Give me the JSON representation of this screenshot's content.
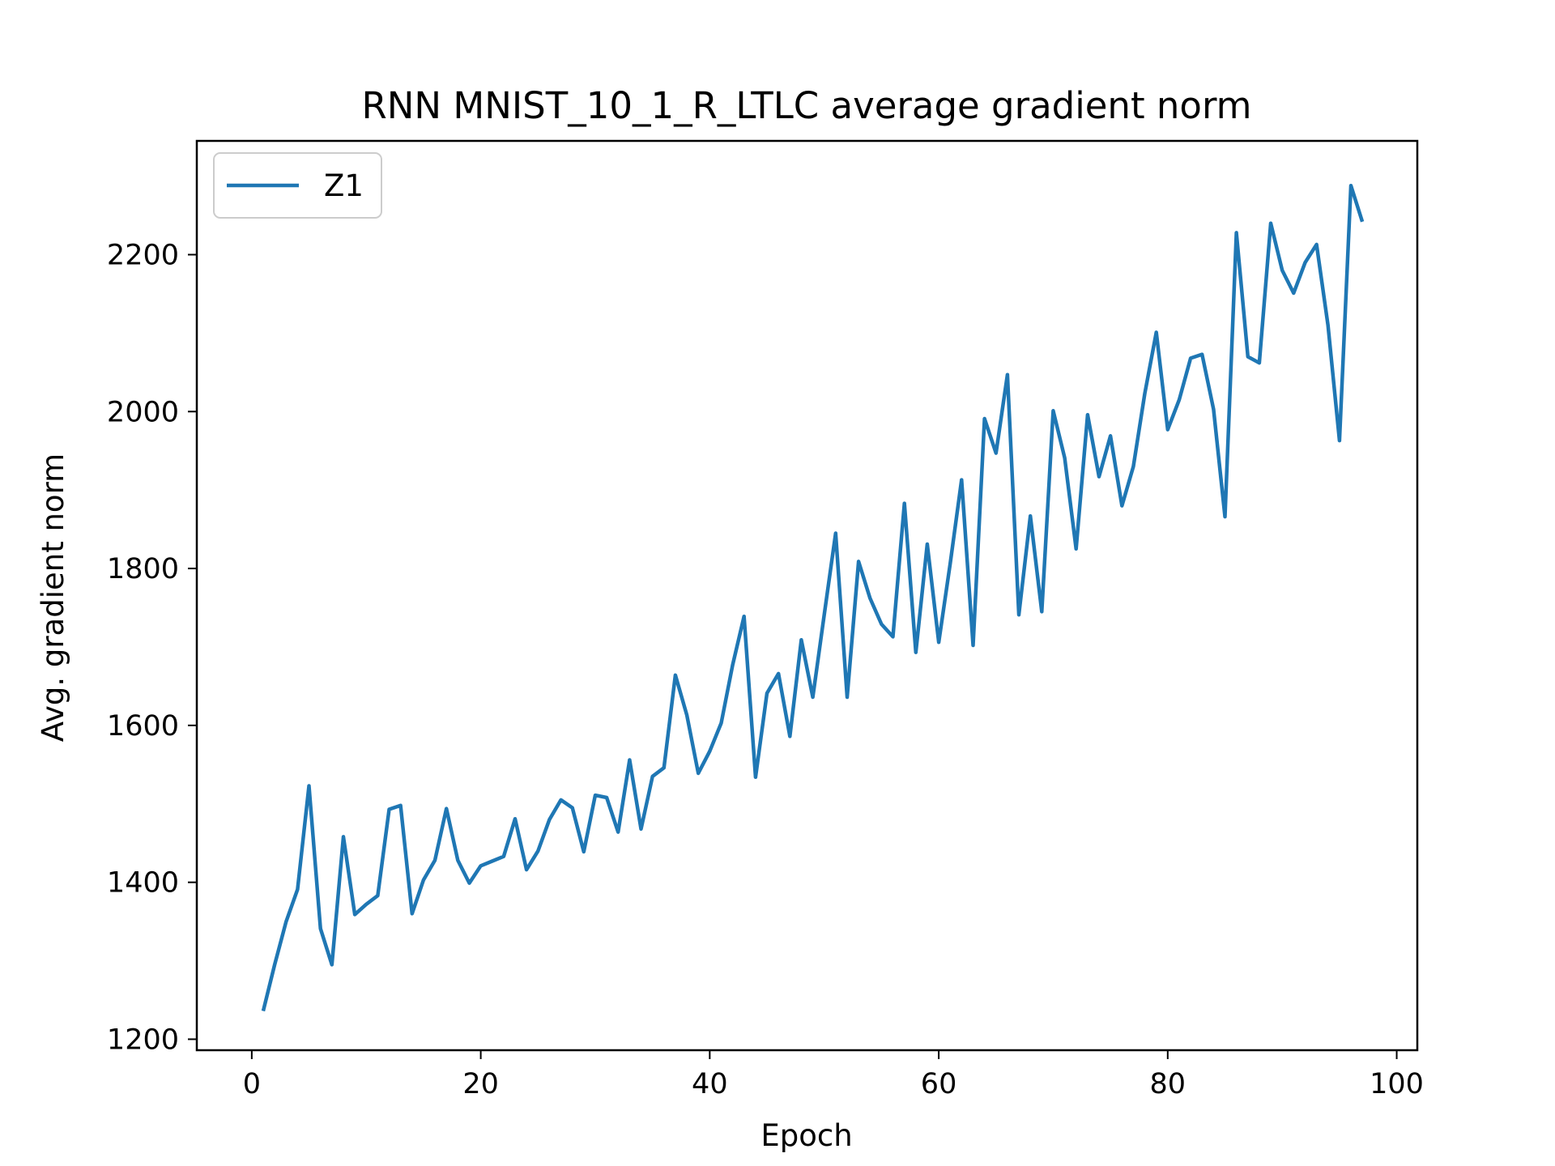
{
  "chart_data": {
    "type": "line",
    "title": "RNN MNIST_10_1_R_LTLC average gradient norm",
    "xlabel": "Epoch",
    "ylabel": "Avg. gradient norm",
    "xlim": [
      -4.8,
      101.8
    ],
    "ylim": [
      1186,
      2345
    ],
    "xticks": [
      0,
      20,
      40,
      60,
      80,
      100
    ],
    "yticks": [
      1200,
      1400,
      1600,
      1800,
      2000,
      2200
    ],
    "grid": false,
    "legend": "top-left",
    "series": [
      {
        "name": "Z1",
        "color": "#1f77b4",
        "x": [
          1,
          2,
          3,
          4,
          5,
          6,
          7,
          8,
          9,
          10,
          11,
          12,
          13,
          14,
          15,
          16,
          17,
          18,
          19,
          20,
          21,
          22,
          23,
          24,
          25,
          26,
          27,
          28,
          29,
          30,
          31,
          32,
          33,
          34,
          35,
          36,
          37,
          38,
          39,
          40,
          41,
          42,
          43,
          44,
          45,
          46,
          47,
          48,
          49,
          50,
          51,
          52,
          53,
          54,
          55,
          56,
          57,
          58,
          59,
          60,
          61,
          62,
          63,
          64,
          65,
          66,
          67,
          68,
          69,
          70,
          71,
          72,
          73,
          74,
          75,
          76,
          77,
          78,
          79,
          80,
          81,
          82,
          83,
          84,
          85,
          86,
          87,
          88,
          89,
          90,
          91,
          92,
          93,
          94,
          95,
          96,
          97
        ],
        "y": [
          1236,
          1295,
          1350,
          1391,
          1523,
          1341,
          1295,
          1458,
          1359,
          1372,
          1383,
          1493,
          1498,
          1360,
          1403,
          1428,
          1494,
          1428,
          1399,
          1421,
          1427,
          1433,
          1481,
          1416,
          1440,
          1480,
          1505,
          1495,
          1439,
          1511,
          1508,
          1464,
          1556,
          1468,
          1535,
          1546,
          1664,
          1613,
          1539,
          1567,
          1603,
          1677,
          1739,
          1534,
          1641,
          1666,
          1586,
          1709,
          1636,
          1741,
          1845,
          1636,
          1809,
          1762,
          1729,
          1713,
          1883,
          1693,
          1831,
          1706,
          1806,
          1913,
          1702,
          1991,
          1947,
          2047,
          1741,
          1867,
          1745,
          2001,
          1941,
          1825,
          1996,
          1917,
          1969,
          1880,
          1930,
          2023,
          2101,
          1977,
          2015,
          2068,
          2073,
          2003,
          1866,
          2228,
          2070,
          2062,
          2240,
          2180,
          2151,
          2190,
          2213,
          2110,
          1963,
          2288,
          2242
        ]
      }
    ]
  }
}
